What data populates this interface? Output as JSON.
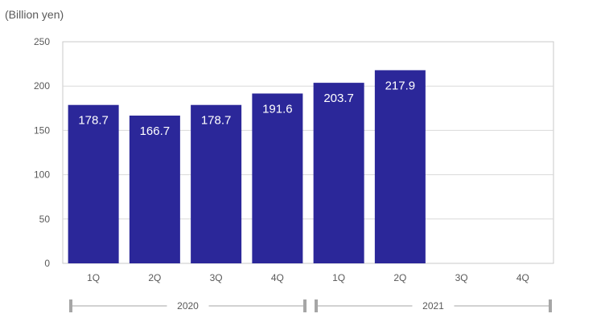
{
  "chart_data": {
    "type": "bar",
    "unit_label": "(Billion yen)",
    "categories": [
      "1Q",
      "2Q",
      "3Q",
      "4Q",
      "1Q",
      "2Q",
      "3Q",
      "4Q"
    ],
    "groups": [
      {
        "label": "2020",
        "categories": [
          "1Q",
          "2Q",
          "3Q",
          "4Q"
        ]
      },
      {
        "label": "2021",
        "categories": [
          "1Q",
          "2Q",
          "3Q",
          "4Q"
        ]
      }
    ],
    "values": [
      178.7,
      166.7,
      178.7,
      191.6,
      203.7,
      217.9,
      null,
      null
    ],
    "data_labels": [
      "178.7",
      "166.7",
      "178.7",
      "191.6",
      "203.7",
      "217.9",
      "",
      ""
    ],
    "ylim": [
      0,
      250
    ],
    "yticks": [
      0,
      50,
      100,
      150,
      200,
      250
    ],
    "grid": true,
    "bar_color": "#2B2799",
    "label_color": "#ffffff"
  }
}
